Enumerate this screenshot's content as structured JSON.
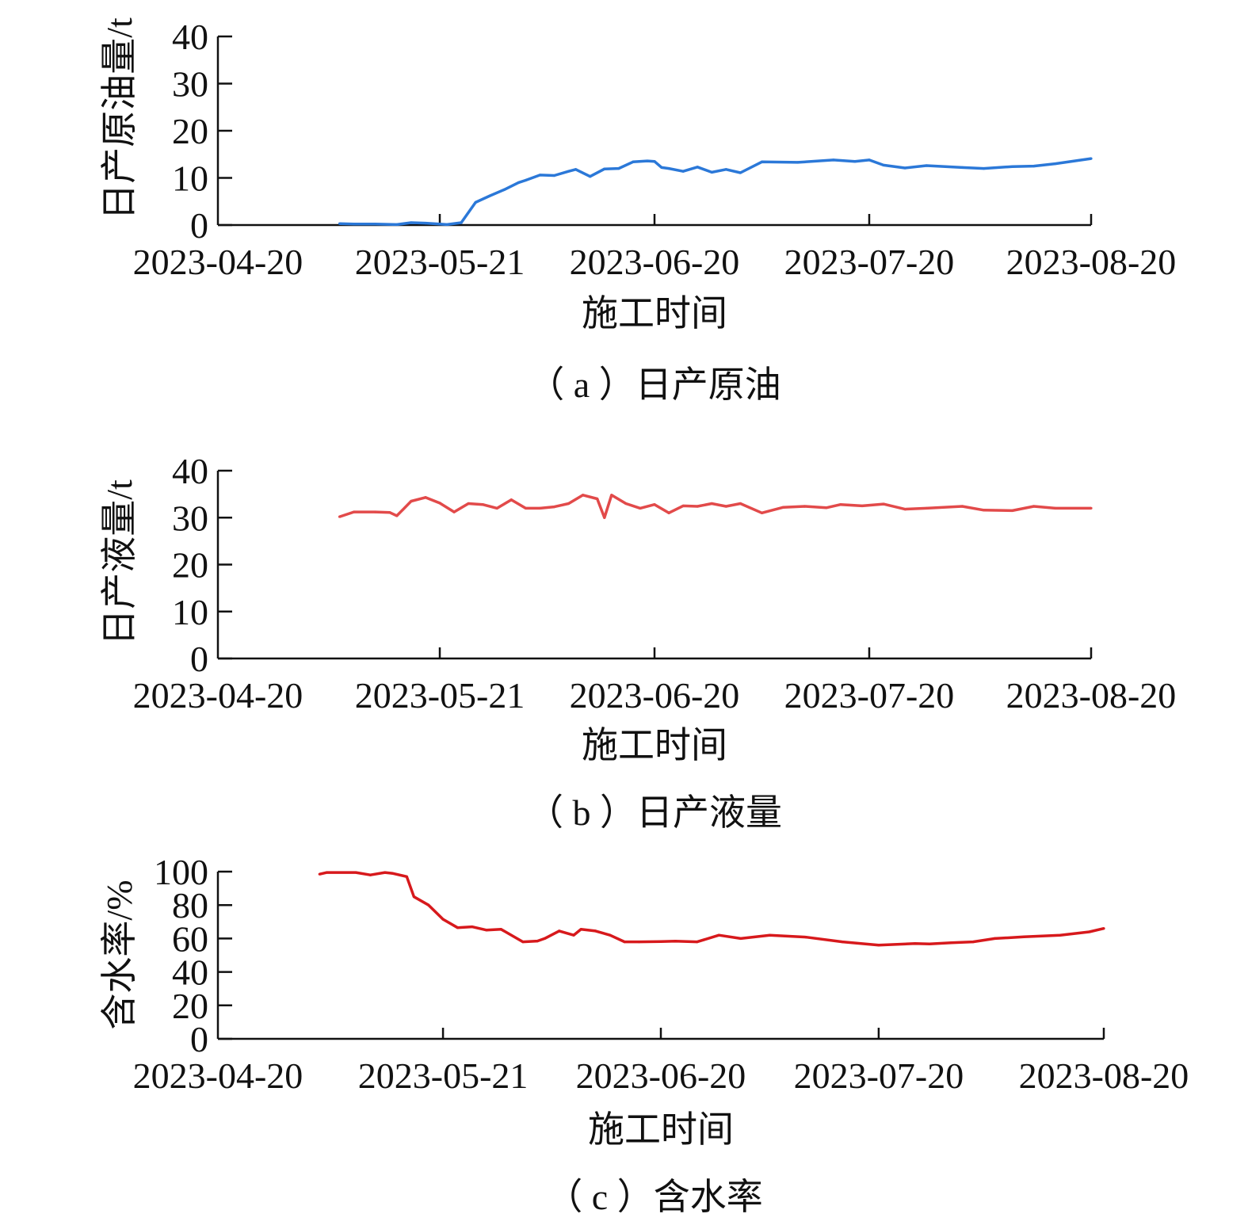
{
  "chart_data": [
    {
      "type": "line",
      "caption": "（ a ）日产原油",
      "xlabel": "施工时间",
      "ylabel": "日产原油量/t",
      "x_ticks": [
        "2023-04-20",
        "2023-05-21",
        "2023-06-20",
        "2023-07-20",
        "2023-08-20"
      ],
      "xlim": [
        "2023-04-20",
        "2023-08-20"
      ],
      "ylim": [
        0,
        40
      ],
      "y_ticks": [
        0,
        10,
        20,
        30,
        40
      ],
      "color": "#2b78d8",
      "series": [
        {
          "x": [
            "2023-05-07",
            "2023-05-09",
            "2023-05-12",
            "2023-05-15",
            "2023-05-17",
            "2023-05-19",
            "2023-05-21",
            "2023-05-22",
            "2023-05-24",
            "2023-05-26",
            "2023-05-28",
            "2023-05-30",
            "2023-06-01",
            "2023-06-02",
            "2023-06-04",
            "2023-06-06",
            "2023-06-08",
            "2023-06-09",
            "2023-06-11",
            "2023-06-13",
            "2023-06-15",
            "2023-06-17",
            "2023-06-19",
            "2023-06-20",
            "2023-06-21",
            "2023-06-22",
            "2023-06-24",
            "2023-06-26",
            "2023-06-28",
            "2023-06-30",
            "2023-07-02",
            "2023-07-05",
            "2023-07-10",
            "2023-07-15",
            "2023-07-18",
            "2023-07-20",
            "2023-07-22",
            "2023-07-25",
            "2023-07-28",
            "2023-08-02",
            "2023-08-05",
            "2023-08-09",
            "2023-08-12",
            "2023-08-15",
            "2023-08-20"
          ],
          "y": [
            0.3,
            0.2,
            0.2,
            0.1,
            0.5,
            0.4,
            0.2,
            0.1,
            0.5,
            4.8,
            6.2,
            7.5,
            9.0,
            9.5,
            10.6,
            10.5,
            11.4,
            11.8,
            10.3,
            11.9,
            12.0,
            13.4,
            13.6,
            13.5,
            12.2,
            12.0,
            11.4,
            12.3,
            11.2,
            11.8,
            11.1,
            13.4,
            13.3,
            13.8,
            13.5,
            13.8,
            12.7,
            12.1,
            12.6,
            12.2,
            12.0,
            12.4,
            12.5,
            13.0,
            14.1
          ]
        }
      ]
    },
    {
      "type": "line",
      "caption": "（ b ）日产液量",
      "xlabel": "施工时间",
      "ylabel": "日产液量/t",
      "x_ticks": [
        "2023-04-20",
        "2023-05-21",
        "2023-06-20",
        "2023-07-20",
        "2023-08-20"
      ],
      "xlim": [
        "2023-04-20",
        "2023-08-20"
      ],
      "ylim": [
        0,
        40
      ],
      "y_ticks": [
        0,
        10,
        20,
        30,
        40
      ],
      "color": "#e24a4a",
      "series": [
        {
          "x": [
            "2023-05-07",
            "2023-05-09",
            "2023-05-12",
            "2023-05-14",
            "2023-05-15",
            "2023-05-17",
            "2023-05-19",
            "2023-05-21",
            "2023-05-23",
            "2023-05-25",
            "2023-05-27",
            "2023-05-29",
            "2023-05-31",
            "2023-06-02",
            "2023-06-04",
            "2023-06-06",
            "2023-06-08",
            "2023-06-10",
            "2023-06-12",
            "2023-06-13",
            "2023-06-14",
            "2023-06-16",
            "2023-06-18",
            "2023-06-20",
            "2023-06-22",
            "2023-06-24",
            "2023-06-26",
            "2023-06-28",
            "2023-06-30",
            "2023-07-02",
            "2023-07-05",
            "2023-07-08",
            "2023-07-11",
            "2023-07-14",
            "2023-07-16",
            "2023-07-19",
            "2023-07-22",
            "2023-07-25",
            "2023-07-28",
            "2023-08-02",
            "2023-08-05",
            "2023-08-09",
            "2023-08-12",
            "2023-08-15",
            "2023-08-20"
          ],
          "y": [
            30.2,
            31.2,
            31.2,
            31.1,
            30.4,
            33.5,
            34.3,
            33.1,
            31.2,
            33.0,
            32.8,
            32.0,
            33.8,
            32.0,
            32.0,
            32.3,
            33.0,
            34.8,
            34.0,
            30.0,
            34.8,
            33.0,
            32.0,
            32.8,
            31.0,
            32.5,
            32.4,
            33.0,
            32.4,
            33.0,
            31.0,
            32.2,
            32.4,
            32.1,
            32.8,
            32.5,
            32.9,
            31.8,
            32.0,
            32.4,
            31.6,
            31.5,
            32.4,
            32.0,
            32.0
          ]
        }
      ]
    },
    {
      "type": "line",
      "caption": "（ c ）含水率",
      "xlabel": "施工时间",
      "ylabel": "含水率/%",
      "x_ticks": [
        "2023-04-20",
        "2023-05-21",
        "2023-06-20",
        "2023-07-20",
        "2023-08-20"
      ],
      "xlim": [
        "2023-04-20",
        "2023-08-20"
      ],
      "ylim": [
        0,
        100
      ],
      "y_ticks": [
        0,
        20,
        40,
        60,
        80,
        100
      ],
      "color": "#d7191c",
      "series": [
        {
          "x": [
            "2023-05-04",
            "2023-05-05",
            "2023-05-09",
            "2023-05-11",
            "2023-05-13",
            "2023-05-14",
            "2023-05-16",
            "2023-05-17",
            "2023-05-19",
            "2023-05-21",
            "2023-05-23",
            "2023-05-25",
            "2023-05-27",
            "2023-05-29",
            "2023-06-01",
            "2023-06-03",
            "2023-06-04",
            "2023-06-06",
            "2023-06-08",
            "2023-06-09",
            "2023-06-11",
            "2023-06-13",
            "2023-06-15",
            "2023-06-17",
            "2023-06-20",
            "2023-06-22",
            "2023-06-25",
            "2023-06-28",
            "2023-07-01",
            "2023-07-05",
            "2023-07-10",
            "2023-07-15",
            "2023-07-20",
            "2023-07-25",
            "2023-07-27",
            "2023-07-30",
            "2023-08-02",
            "2023-08-05",
            "2023-08-09",
            "2023-08-14",
            "2023-08-18",
            "2023-08-20"
          ],
          "y": [
            98.5,
            99.5,
            99.5,
            98.0,
            99.5,
            99.0,
            97.0,
            85.0,
            80.0,
            71.5,
            66.5,
            67.0,
            65.0,
            65.5,
            58.0,
            58.5,
            60.0,
            64.5,
            62.0,
            65.5,
            64.5,
            62.0,
            58.0,
            58.0,
            58.2,
            58.4,
            58.0,
            62.0,
            60.0,
            62.0,
            60.8,
            58.0,
            56.0,
            57.0,
            56.8,
            57.5,
            58.0,
            60.0,
            61.0,
            62.0,
            64.0,
            66.0
          ]
        }
      ]
    }
  ]
}
